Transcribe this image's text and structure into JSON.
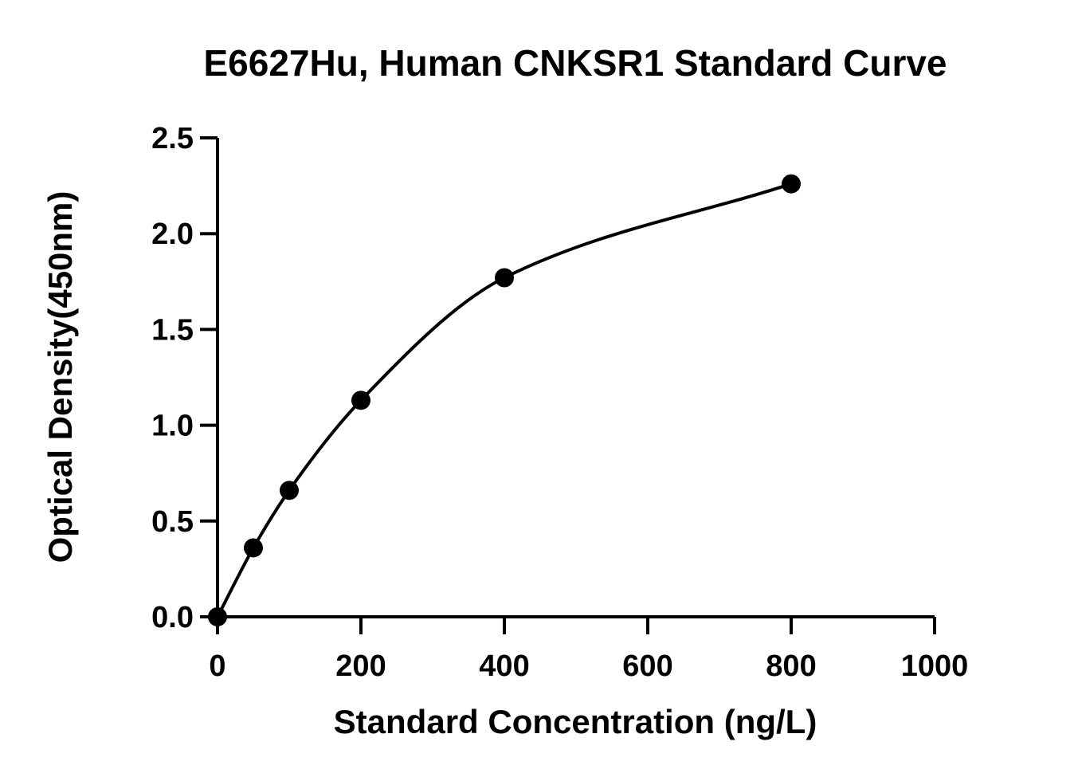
{
  "chart_data": {
    "type": "scatter",
    "title": "E6627Hu, Human CNKSR1 Standard Curve",
    "xlabel": "Standard Concentration (ng/L)",
    "ylabel": "Optical Density(450nm)",
    "xlim": [
      0,
      1000
    ],
    "ylim": [
      0,
      2.5
    ],
    "xticks": [
      0,
      200,
      400,
      600,
      800,
      1000
    ],
    "xtick_labels": [
      "0",
      "200",
      "400",
      "600",
      "800",
      "1000"
    ],
    "yticks": [
      0,
      0.5,
      1.0,
      1.5,
      2.0,
      2.5
    ],
    "ytick_labels": [
      "0.0",
      "0.5",
      "1.0",
      "1.5",
      "2.0",
      "2.5"
    ],
    "series": [
      {
        "x": [
          0,
          50,
          100,
          200,
          400,
          800
        ],
        "y": [
          0.0,
          0.36,
          0.66,
          1.13,
          1.77,
          2.26
        ],
        "marker": "filled-circle",
        "fit_line": true
      }
    ],
    "grid": false,
    "legend": "none"
  }
}
